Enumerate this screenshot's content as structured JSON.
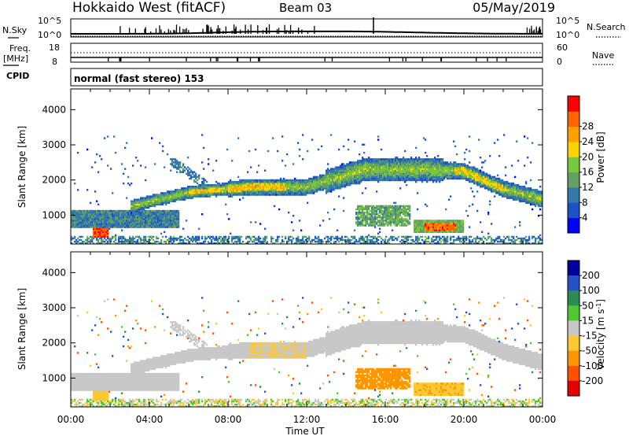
{
  "header": {
    "station": "Hokkaido West (fitACF)",
    "beam": "Beam 03",
    "date": "05/May/2019"
  },
  "mode": "normal (fast stereo) 153",
  "left_labels": {
    "nsky": "N.Sky",
    "freq_top": "Freq.",
    "freq_unit": "[MHz]",
    "cpid": "CPID"
  },
  "right_labels": {
    "nsearch": "N.Search",
    "nave": "Nave"
  },
  "noise_axis": {
    "top": "10^5",
    "bottom": "10^0"
  },
  "freq_axis": {
    "left": [
      "18",
      "8"
    ],
    "right": [
      "60",
      "0"
    ]
  },
  "x_axis": {
    "label": "Time UT",
    "ticks": [
      "00:00",
      "04:00",
      "08:00",
      "12:00",
      "16:00",
      "20:00",
      "00:00"
    ],
    "range_hours": [
      0,
      24
    ]
  },
  "colors": {
    "power_scale": [
      "#0000ff",
      "#1e50c8",
      "#3278aa",
      "#64a064",
      "#78c83c",
      "#ffd200",
      "#ffa000",
      "#ff6400",
      "#ff0000"
    ],
    "velocity_scale": [
      "#0000a0",
      "#2850c8",
      "#2a8c50",
      "#50c832",
      "#c8c8c8",
      "#ffc832",
      "#ff9600",
      "#ff5000",
      "#e60000"
    ]
  },
  "chart_data": [
    {
      "type": "heatmap",
      "title": "Power",
      "ylabel": "Slant Range [km]",
      "yticks": [
        "1000",
        "2000",
        "3000",
        "4000"
      ],
      "ylim": [
        180,
        4590
      ],
      "colorbar": {
        "label": "Power [dB]",
        "ticks": [
          "4",
          "8",
          "12",
          "16",
          "20",
          "24",
          "28"
        ],
        "range": [
          0,
          30
        ]
      },
      "features": [
        {
          "name": "main band",
          "time_h": [
            3,
            24
          ],
          "range_km": [
            1200,
            2700
          ],
          "value": 14
        },
        {
          "name": "near band",
          "time_h": [
            0,
            5
          ],
          "range_km": [
            700,
            1100
          ],
          "value": 10
        },
        {
          "name": "echo 1",
          "time_h": [
            1.2,
            1.8
          ],
          "range_km": [
            400,
            650
          ],
          "value": 26
        },
        {
          "name": "echo 2",
          "time_h": [
            14.5,
            17.5
          ],
          "range_km": [
            700,
            1250
          ],
          "value": 14
        },
        {
          "name": "echo 3",
          "time_h": [
            17.5,
            20
          ],
          "range_km": [
            500,
            850
          ],
          "value": 24
        }
      ]
    },
    {
      "type": "heatmap",
      "title": "Velocity",
      "ylabel": "Slant Range [km]",
      "yticks": [
        "1000",
        "2000",
        "3000",
        "4000"
      ],
      "ylim": [
        180,
        4590
      ],
      "colorbar": {
        "label": "Velocity [m s^-1]",
        "ticks": [
          "200",
          "100",
          "50",
          "15",
          "-15",
          "-50",
          "-100",
          "-200"
        ],
        "range": [
          250,
          -250
        ]
      },
      "features": [
        {
          "name": "main band",
          "time_h": [
            3,
            24
          ],
          "range_km": [
            1200,
            2700
          ],
          "value": 0
        },
        {
          "name": "near band",
          "time_h": [
            0,
            5
          ],
          "range_km": [
            700,
            1100
          ],
          "value": 0
        },
        {
          "name": "echo 2",
          "time_h": [
            14.5,
            17.5
          ],
          "range_km": [
            700,
            1250
          ],
          "value": -80
        },
        {
          "name": "echo 3",
          "time_h": [
            17.5,
            20
          ],
          "range_km": [
            500,
            850
          ],
          "value": -40
        }
      ]
    }
  ]
}
